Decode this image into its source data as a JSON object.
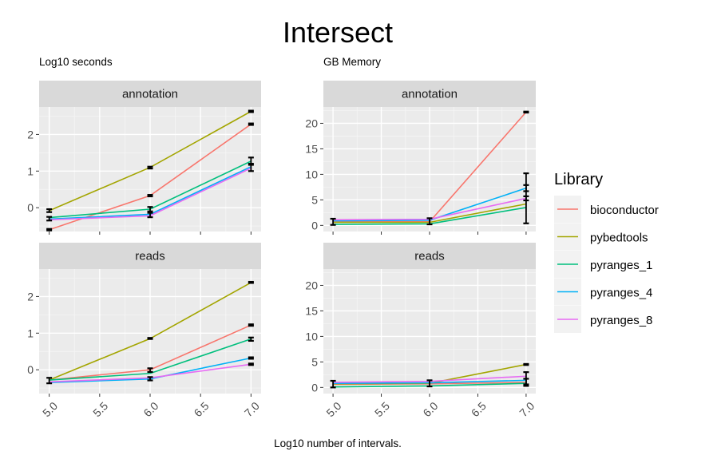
{
  "figure": {
    "title": "Intersect",
    "x_caption": "Log10 number of intervals.",
    "left_subtitle": "Log10 seconds",
    "right_subtitle": "GB Memory",
    "legend_title": "Library"
  },
  "libraries": [
    {
      "name": "bioconductor",
      "color": "#F8766D"
    },
    {
      "name": "pybedtools",
      "color": "#A3A500"
    },
    {
      "name": "pyranges_1",
      "color": "#00BF7D"
    },
    {
      "name": "pyranges_4",
      "color": "#00B0F6"
    },
    {
      "name": "pyranges_8",
      "color": "#E76BF3"
    }
  ],
  "chart_data": [
    {
      "type": "line",
      "title": "annotation",
      "ylabel": "Log10 seconds",
      "x": [
        5,
        6,
        7
      ],
      "x_ticks": [
        "5.0",
        "5.5",
        "6.0",
        "6.5",
        "7.0"
      ],
      "ylim": [
        -0.65,
        2.75
      ],
      "y_ticks": [
        0,
        1,
        2
      ],
      "series": [
        {
          "name": "bioconductor",
          "values": [
            -0.6,
            0.33,
            2.28
          ]
        },
        {
          "name": "pybedtools",
          "values": [
            -0.08,
            1.1,
            2.63
          ]
        },
        {
          "name": "pyranges_1",
          "values": [
            -0.27,
            -0.04,
            1.27
          ]
        },
        {
          "name": "pyranges_4",
          "values": [
            -0.31,
            -0.18,
            1.12
          ]
        },
        {
          "name": "pyranges_8",
          "values": [
            -0.33,
            -0.22,
            1.08
          ]
        }
      ],
      "error_bars": [
        {
          "x": 5,
          "low": -0.12,
          "high": -0.04
        },
        {
          "x": 5,
          "low": -0.35,
          "high": -0.25
        },
        {
          "x": 5,
          "low": -0.62,
          "high": -0.58
        },
        {
          "x": 6,
          "low": 1.07,
          "high": 1.12
        },
        {
          "x": 6,
          "low": 0.31,
          "high": 0.35
        },
        {
          "x": 6,
          "low": -0.1,
          "high": 0.02
        },
        {
          "x": 6,
          "low": -0.26,
          "high": -0.14
        },
        {
          "x": 7,
          "low": 2.61,
          "high": 2.65
        },
        {
          "x": 7,
          "low": 2.26,
          "high": 2.3
        },
        {
          "x": 7,
          "low": 1.17,
          "high": 1.37
        },
        {
          "x": 7,
          "low": 1.0,
          "high": 1.2
        }
      ]
    },
    {
      "type": "line",
      "title": "annotation",
      "ylabel": "GB Memory",
      "x": [
        5,
        6,
        7
      ],
      "x_ticks": [
        "5.0",
        "5.5",
        "6.0",
        "6.5",
        "7.0"
      ],
      "ylim": [
        -1.2,
        23.2
      ],
      "y_ticks": [
        0,
        5,
        10,
        15,
        20
      ],
      "series": [
        {
          "name": "bioconductor",
          "values": [
            0.7,
            0.7,
            22.2
          ]
        },
        {
          "name": "pybedtools",
          "values": [
            0.6,
            0.6,
            4.2
          ]
        },
        {
          "name": "pyranges_1",
          "values": [
            0.2,
            0.3,
            3.5
          ]
        },
        {
          "name": "pyranges_4",
          "values": [
            0.9,
            1.0,
            7.3
          ]
        },
        {
          "name": "pyranges_8",
          "values": [
            1.1,
            1.2,
            5.3
          ]
        }
      ],
      "error_bars": [
        {
          "x": 5,
          "low": 0.1,
          "high": 1.3
        },
        {
          "x": 6,
          "low": 0.2,
          "high": 1.4
        },
        {
          "x": 7,
          "low": 22.1,
          "high": 22.3
        },
        {
          "x": 7,
          "low": 0.4,
          "high": 10.2
        },
        {
          "x": 7,
          "low": 6.7,
          "high": 7.9
        },
        {
          "x": 7,
          "low": 4.9,
          "high": 5.7
        }
      ]
    },
    {
      "type": "line",
      "title": "reads",
      "ylabel": "Log10 seconds",
      "x": [
        5,
        6,
        7
      ],
      "x_ticks": [
        "5.0",
        "5.5",
        "6.0",
        "6.5",
        "7.0"
      ],
      "ylim": [
        -0.65,
        2.75
      ],
      "y_ticks": [
        0,
        1,
        2
      ],
      "series": [
        {
          "name": "bioconductor",
          "values": [
            -0.28,
            0.0,
            1.22
          ]
        },
        {
          "name": "pybedtools",
          "values": [
            -0.28,
            0.85,
            2.38
          ]
        },
        {
          "name": "pyranges_1",
          "values": [
            -0.28,
            -0.1,
            0.84
          ]
        },
        {
          "name": "pyranges_4",
          "values": [
            -0.35,
            -0.25,
            0.32
          ]
        },
        {
          "name": "pyranges_8",
          "values": [
            -0.33,
            -0.22,
            0.15
          ]
        }
      ],
      "error_bars": [
        {
          "x": 5,
          "low": -0.37,
          "high": -0.22
        },
        {
          "x": 6,
          "low": 0.84,
          "high": 0.87
        },
        {
          "x": 6,
          "low": -0.06,
          "high": 0.04
        },
        {
          "x": 6,
          "low": -0.29,
          "high": -0.2
        },
        {
          "x": 7,
          "low": 2.37,
          "high": 2.4
        },
        {
          "x": 7,
          "low": 1.2,
          "high": 1.24
        },
        {
          "x": 7,
          "low": 0.79,
          "high": 0.88
        },
        {
          "x": 7,
          "low": 0.3,
          "high": 0.34
        },
        {
          "x": 7,
          "low": 0.13,
          "high": 0.17
        }
      ]
    },
    {
      "type": "line",
      "title": "reads",
      "ylabel": "GB Memory",
      "x": [
        5,
        6,
        7
      ],
      "x_ticks": [
        "5.0",
        "5.5",
        "6.0",
        "6.5",
        "7.0"
      ],
      "ylim": [
        -1.2,
        23.2
      ],
      "y_ticks": [
        0,
        5,
        10,
        15,
        20
      ],
      "series": [
        {
          "name": "bioconductor",
          "values": [
            0.6,
            0.7,
            1.0
          ]
        },
        {
          "name": "pybedtools",
          "values": [
            0.7,
            0.8,
            4.5
          ]
        },
        {
          "name": "pyranges_1",
          "values": [
            0.1,
            0.3,
            0.8
          ]
        },
        {
          "name": "pyranges_4",
          "values": [
            0.8,
            0.9,
            1.4
          ]
        },
        {
          "name": "pyranges_8",
          "values": [
            1.0,
            1.2,
            2.2
          ]
        }
      ],
      "error_bars": [
        {
          "x": 5,
          "low": 0.0,
          "high": 1.3
        },
        {
          "x": 6,
          "low": 0.2,
          "high": 1.4
        },
        {
          "x": 7,
          "low": 4.4,
          "high": 4.6
        },
        {
          "x": 7,
          "low": 0.3,
          "high": 3.0
        },
        {
          "x": 7,
          "low": 0.6,
          "high": 1.7
        }
      ]
    }
  ]
}
